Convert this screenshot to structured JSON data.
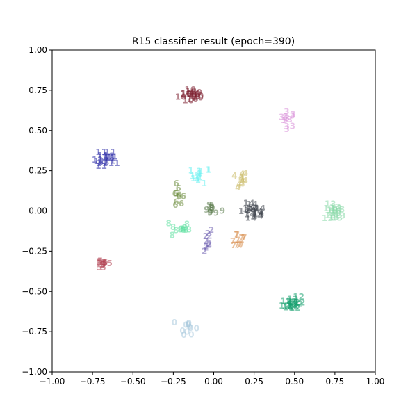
{
  "chart_data": {
    "type": "scatter",
    "title": "R15 classifier result (epoch=390)",
    "xlabel": "",
    "ylabel": "",
    "xlim": [
      -1.0,
      1.0
    ],
    "ylim": [
      -1.0,
      1.0
    ],
    "xticks": [
      "−1.00",
      "−0.75",
      "−0.50",
      "−0.25",
      "0.00",
      "0.25",
      "0.50",
      "0.75",
      "1.00"
    ],
    "yticks": [
      "−1.00",
      "−0.75",
      "−0.50",
      "−0.25",
      "0.00",
      "0.25",
      "0.50",
      "0.75",
      "1.00"
    ],
    "xtick_values": [
      -1.0,
      -0.75,
      -0.5,
      -0.25,
      0.0,
      0.25,
      0.5,
      0.75,
      1.0
    ],
    "ytick_values": [
      -1.0,
      -0.75,
      -0.5,
      -0.25,
      0.0,
      0.25,
      0.5,
      0.75,
      1.0
    ],
    "grid": false,
    "marker": "text labels (class index)",
    "clusters": [
      {
        "label": "10",
        "color": "#7b1e2e",
        "center": [
          -0.13,
          0.72
        ],
        "spread": [
          0.06,
          0.04
        ],
        "count": 14
      },
      {
        "label": "3",
        "color": "#d98fd9",
        "center": [
          0.46,
          0.57
        ],
        "spread": [
          0.04,
          0.04
        ],
        "count": 12
      },
      {
        "label": "11",
        "color": "#2a2aa6",
        "center": [
          -0.66,
          0.32
        ],
        "spread": [
          0.05,
          0.05
        ],
        "count": 14
      },
      {
        "label": "1",
        "color": "#66f0f0",
        "center": [
          -0.08,
          0.22
        ],
        "spread": [
          0.05,
          0.04
        ],
        "count": 14
      },
      {
        "label": "4",
        "color": "#c8b860",
        "center": [
          0.15,
          0.19
        ],
        "spread": [
          0.05,
          0.05
        ],
        "count": 10
      },
      {
        "label": "6",
        "color": "#6a8a3a",
        "center": [
          -0.22,
          0.08
        ],
        "spread": [
          0.03,
          0.06
        ],
        "count": 10
      },
      {
        "label": "9",
        "color": "#5a7a4a",
        "center": [
          -0.01,
          0.01
        ],
        "spread": [
          0.05,
          0.03
        ],
        "count": 10
      },
      {
        "label": "14",
        "color": "#3a3f48",
        "center": [
          0.24,
          -0.01
        ],
        "spread": [
          0.05,
          0.05
        ],
        "count": 14
      },
      {
        "label": "13",
        "color": "#88d8a8",
        "center": [
          0.75,
          -0.01
        ],
        "spread": [
          0.04,
          0.04
        ],
        "count": 14
      },
      {
        "label": "8",
        "color": "#5ee0a0",
        "center": [
          -0.21,
          -0.11
        ],
        "spread": [
          0.05,
          0.05
        ],
        "count": 12
      },
      {
        "label": "2",
        "color": "#7060b0",
        "center": [
          -0.06,
          -0.18
        ],
        "spread": [
          0.05,
          0.07
        ],
        "count": 10
      },
      {
        "label": "7",
        "color": "#d99050",
        "center": [
          0.15,
          -0.18
        ],
        "spread": [
          0.05,
          0.05
        ],
        "count": 12
      },
      {
        "label": "5",
        "color": "#b04050",
        "center": [
          -0.68,
          -0.33
        ],
        "spread": [
          0.05,
          0.03
        ],
        "count": 12
      },
      {
        "label": "12",
        "color": "#18a070",
        "center": [
          0.49,
          -0.57
        ],
        "spread": [
          0.04,
          0.04
        ],
        "count": 16
      },
      {
        "label": "0",
        "color": "#a8c8dc",
        "center": [
          -0.16,
          -0.72
        ],
        "spread": [
          0.04,
          0.04
        ],
        "count": 12
      }
    ]
  }
}
